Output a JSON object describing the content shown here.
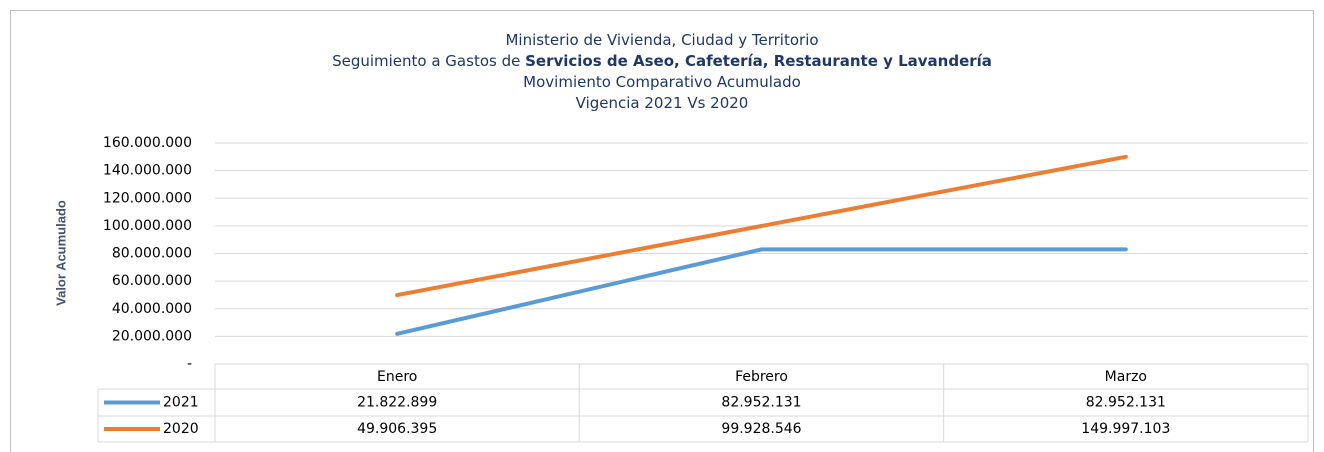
{
  "chart_data": {
    "type": "line",
    "title_lines": [
      "Ministerio de Vivienda, Ciudad y Territorio",
      "Seguimiento a Gastos de",
      "Movimiento Comparativo Acumulado",
      "Vigencia 2021 Vs 2020"
    ],
    "title_bold": "Servicios de Aseo, Cafetería, Restaurante y Lavandería",
    "y_label": "Valor Acumulado",
    "categories": [
      "Enero",
      "Febrero",
      "Marzo"
    ],
    "series": [
      {
        "name": "2021",
        "color": "#5b9bd5",
        "values": [
          21822899,
          82952131,
          82952131
        ],
        "value_labels": [
          "21.822.899",
          "82.952.131",
          "82.952.131"
        ]
      },
      {
        "name": "2020",
        "color": "#ed7d31",
        "values": [
          49906395,
          99928546,
          149997103
        ],
        "value_labels": [
          "49.906.395",
          "99.928.546",
          "149.997.103"
        ]
      }
    ],
    "ylim": [
      0,
      160000000
    ],
    "yticks": [
      {
        "value": 0,
        "label": "-"
      },
      {
        "value": 20000000,
        "label": "20.000.000"
      },
      {
        "value": 40000000,
        "label": "40.000.000"
      },
      {
        "value": 60000000,
        "label": "60.000.000"
      },
      {
        "value": 80000000,
        "label": "80.000.000"
      },
      {
        "value": 100000000,
        "label": "100.000.000"
      },
      {
        "value": 120000000,
        "label": "120.000.000"
      },
      {
        "value": 140000000,
        "label": "140.000.000"
      },
      {
        "value": 160000000,
        "label": "160.000.000"
      }
    ],
    "grid": true
  }
}
